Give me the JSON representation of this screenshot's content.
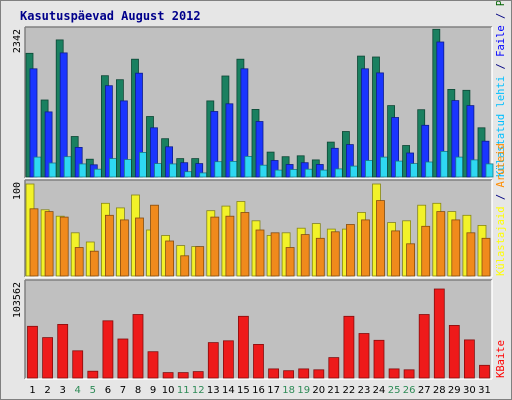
{
  "chart_data": {
    "title": "Kasutuspäevad August 2012",
    "type": "bar",
    "categories": [
      "1",
      "2",
      "3",
      "4",
      "5",
      "6",
      "7",
      "8",
      "9",
      "10",
      "11",
      "12",
      "13",
      "14",
      "15",
      "16",
      "17",
      "18",
      "19",
      "20",
      "21",
      "22",
      "23",
      "24",
      "25",
      "26",
      "27",
      "28",
      "29",
      "30",
      "31"
    ],
    "weekend_days": [
      "4",
      "5",
      "11",
      "12",
      "18",
      "19",
      "25",
      "26"
    ],
    "panels": [
      {
        "id": "visits",
        "ytick": "2342",
        "ymax": 2342,
        "legend_parts": [
          {
            "text": "Pöördumisi",
            "color": "#006400"
          },
          {
            "text": " / ",
            "color": "#000080"
          },
          {
            "text": "Faile",
            "color": "#0000ff"
          },
          {
            "text": " / ",
            "color": "#000080"
          },
          {
            "text": "Külastatud lehti",
            "color": "#00bfff"
          }
        ],
        "series": [
          {
            "name": "Pöördumisi",
            "color": "#1a8060",
            "values": [
              1985,
              1235,
              2200,
              650,
              285,
              1625,
              1560,
              1890,
              970,
              615,
              295,
              295,
              1220,
              1620,
              1890,
              1085,
              400,
              325,
              340,
              275,
              560,
              730,
              1940,
              1925,
              1145,
              505,
              1080,
              2370,
              1405,
              1390,
              790
            ]
          },
          {
            "name": "Faile",
            "color": "#1a35ff",
            "values": [
              1735,
              1045,
              1990,
              475,
              195,
              1465,
              1220,
              1665,
              790,
              485,
              230,
              215,
              1050,
              1175,
              1735,
              890,
              265,
              200,
              230,
              200,
              460,
              520,
              1735,
              1670,
              955,
              385,
              830,
              2165,
              1225,
              1145,
              575
            ]
          },
          {
            "name": "Külastatud lehti",
            "color": "#2ed8f2",
            "values": [
              320,
              225,
              325,
              210,
              125,
              295,
              280,
              395,
              215,
              210,
              85,
              65,
              245,
              250,
              330,
              190,
              110,
              120,
              125,
              110,
              130,
              175,
              265,
              320,
              255,
              215,
              240,
              410,
              320,
              275,
              210
            ]
          }
        ]
      },
      {
        "id": "visitors",
        "ytick": "100",
        "ymax": 100,
        "legend_parts": [
          {
            "text": "Aruteid",
            "color": "#ff8c00"
          },
          {
            "text": " / ",
            "color": "#000080"
          },
          {
            "text": "Külastajaid",
            "color": "#ffff00"
          }
        ],
        "series": [
          {
            "name": "Külastajaid",
            "color": "#f2f229",
            "values": [
              100,
              72,
              65,
              47,
              37,
              79,
              74,
              88,
              50,
              44,
              33,
              32,
              71,
              76,
              81,
              60,
              44,
              47,
              52,
              57,
              51,
              51,
              69,
              100,
              58,
              60,
              77,
              79,
              70,
              66,
              55
            ]
          },
          {
            "name": "Aruteid",
            "color": "#f08a1c",
            "values": [
              73,
              70,
              64,
              31,
              27,
              66,
              61,
              63,
              77,
              38,
              22,
              32,
              64,
              65,
              69,
              50,
              47,
              31,
              45,
              41,
              48,
              56,
              61,
              82,
              49,
              35,
              54,
              70,
              61,
              47,
              41
            ]
          }
        ]
      },
      {
        "id": "bytes",
        "ytick": "103562",
        "ymax": 103562,
        "legend_parts": [
          {
            "text": "KBaite",
            "color": "#ff0000"
          }
        ],
        "series": [
          {
            "name": "KBaite",
            "color": "#ee1a1a",
            "values": [
              57000,
              44500,
              59000,
              30000,
              7500,
              63000,
              43000,
              70000,
              29000,
              6000,
              6000,
              7000,
              39000,
              41000,
              68000,
              37000,
              10000,
              8000,
              10000,
              9000,
              22500,
              68000,
              49000,
              41500,
              10000,
              9000,
              70000,
              98000,
              58000,
              42000,
              14000
            ]
          }
        ]
      }
    ]
  }
}
